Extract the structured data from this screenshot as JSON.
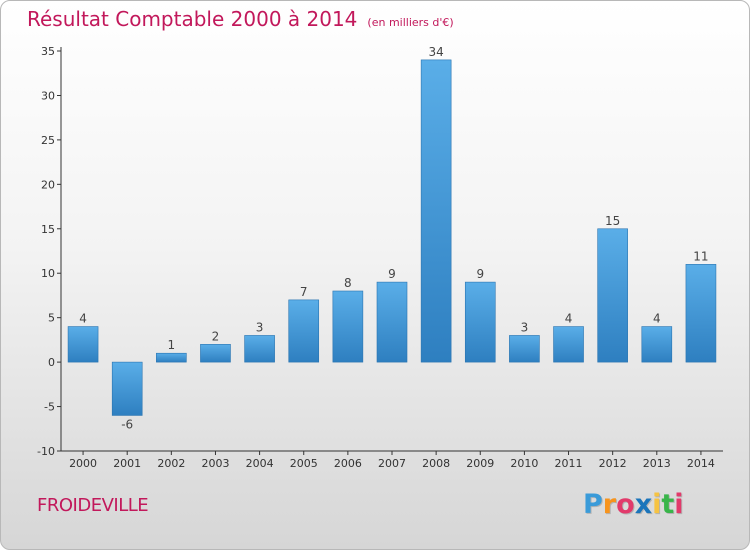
{
  "header": {
    "title": "Résultat Comptable 2000 à 2014",
    "subtitle": "(en milliers d'€)"
  },
  "footer": {
    "commune": "FROIDEVILLE",
    "logo_letters": [
      "P",
      "r",
      "o",
      "x",
      "i",
      "t",
      "i"
    ],
    "logo_colors": [
      "#3a9bd9",
      "#f7941d",
      "#e23a6b",
      "#1b75bb",
      "#f6c343",
      "#39b54a",
      "#e23a6b"
    ]
  },
  "colors": {
    "bar_light": "#5aaee8",
    "bar_dark": "#2e7fc0",
    "axis": "#333333",
    "grid": "#bdbdbd",
    "brand": "#c2185b"
  },
  "chart_data": {
    "type": "bar",
    "title": "Résultat Comptable 2000 à 2014",
    "subtitle": "(en milliers d'€)",
    "xlabel": "",
    "ylabel": "",
    "categories": [
      "2000",
      "2001",
      "2002",
      "2003",
      "2004",
      "2005",
      "2006",
      "2007",
      "2008",
      "2009",
      "2010",
      "2011",
      "2012",
      "2013",
      "2014"
    ],
    "values": [
      4,
      -6,
      1,
      2,
      3,
      7,
      8,
      9,
      34,
      9,
      3,
      4,
      15,
      4,
      11
    ],
    "ylim": [
      -10,
      35
    ],
    "yticks": [
      -10,
      -5,
      0,
      5,
      10,
      15,
      20,
      25,
      30,
      35
    ],
    "grid": false
  }
}
